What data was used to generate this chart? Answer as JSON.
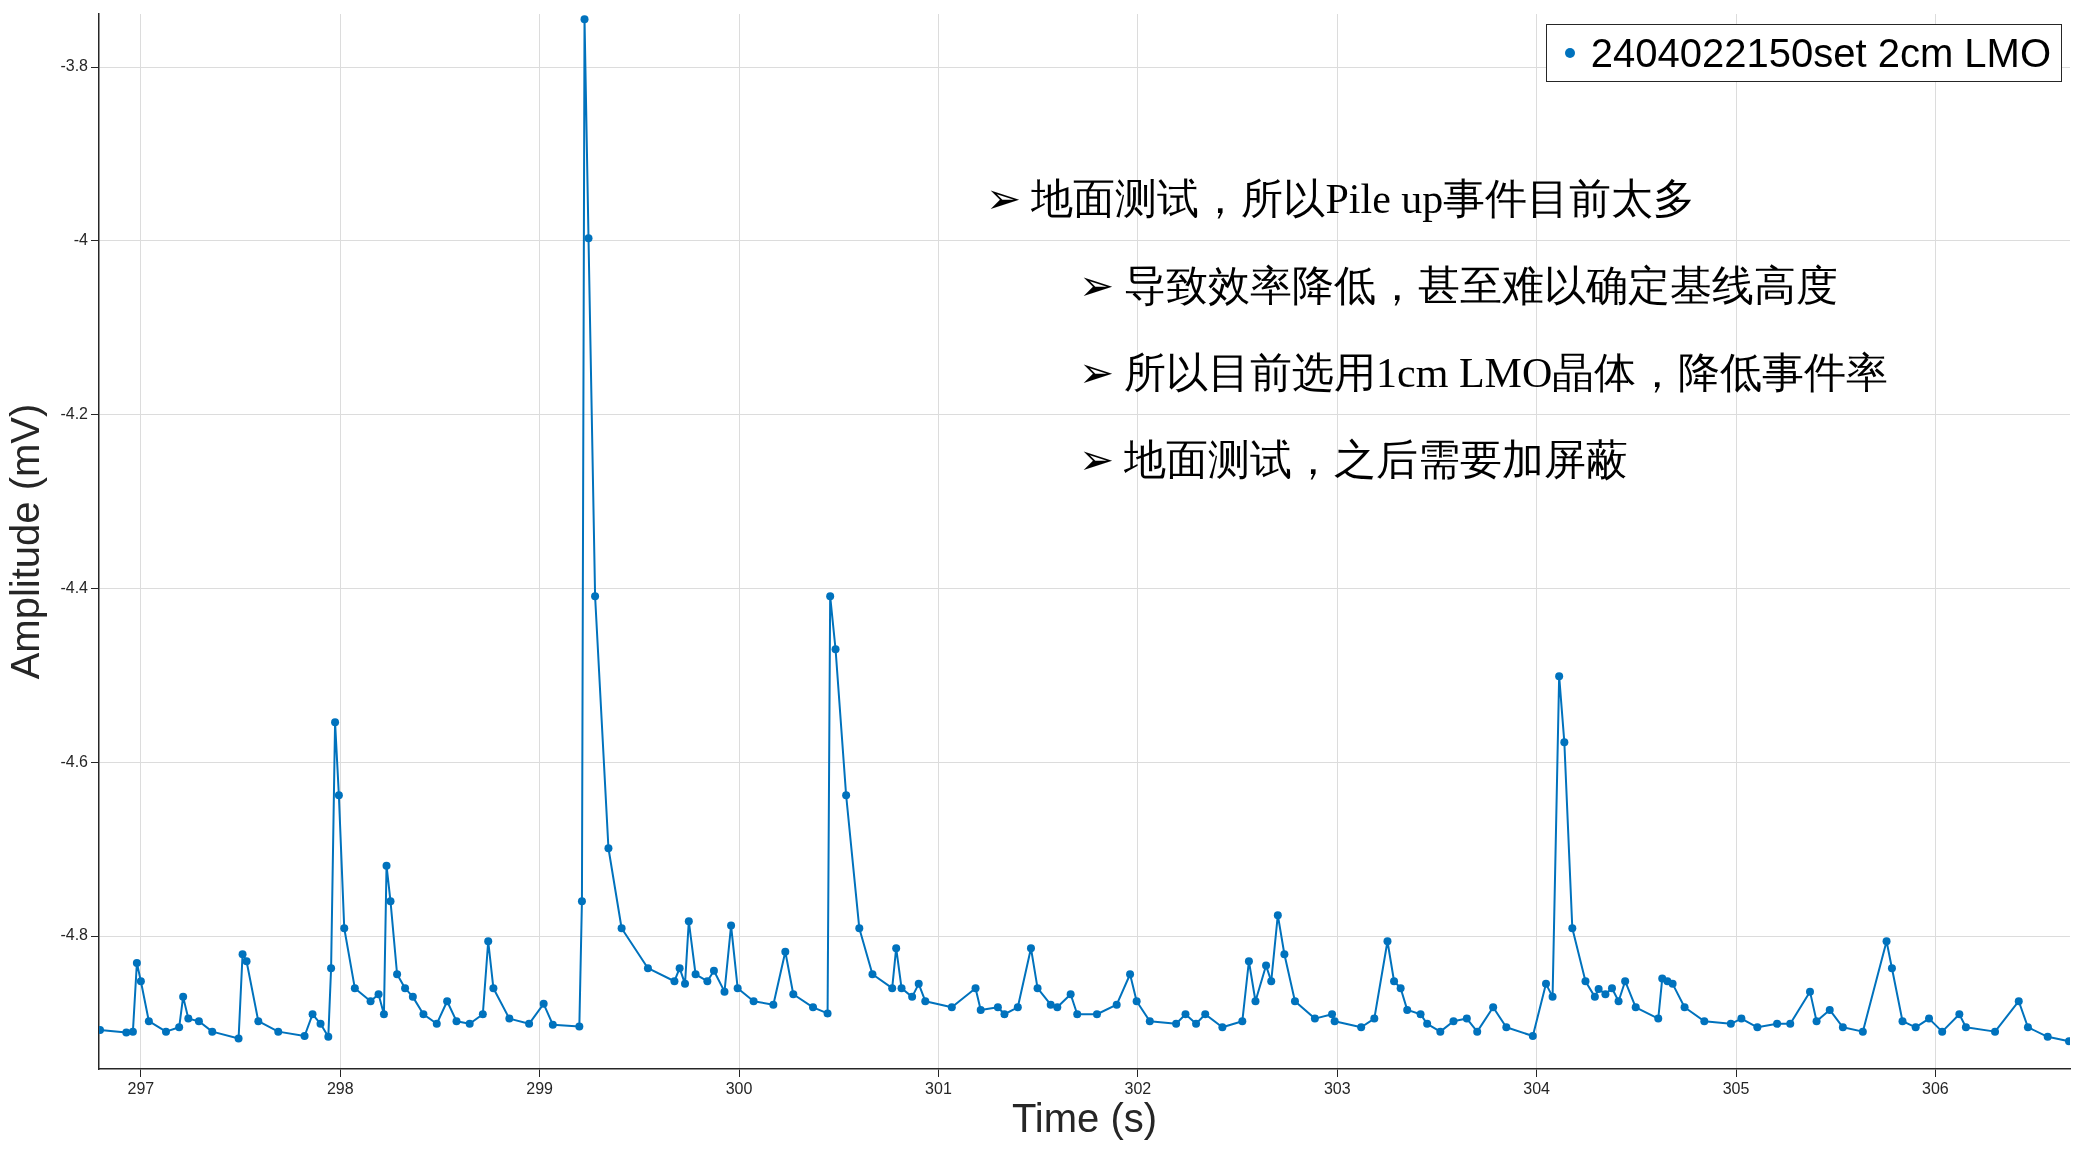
{
  "chart_data": {
    "type": "line",
    "xlabel": "Time (s)",
    "ylabel": "Amplitude (mV)",
    "legend": "top right",
    "marker": "circle",
    "grid": true,
    "xlim": [
      296.79,
      306.675
    ],
    "ylim": [
      -4.953,
      -3.739
    ],
    "xticks": [
      297,
      298,
      299,
      300,
      301,
      302,
      303,
      304,
      305,
      306
    ],
    "yticks": [
      -4.8,
      -4.6,
      -4.4,
      -4.2,
      -4,
      -3.8
    ],
    "annotations": [
      "➢ 地面测试，所以Pile up事件目前太多",
      "➢ 导致效率降低，甚至难以确定基线高度",
      "➢ 所以目前选用1cm LMO晶体，降低事件率",
      "➢ 地面测试，之后需要加屏蔽"
    ],
    "series": [
      {
        "name": "2404022150set 2cm LMO",
        "color": "#0072bd",
        "x": [
          296.795,
          296.927,
          296.96,
          296.98,
          297.0,
          297.04,
          297.126,
          297.192,
          297.212,
          297.238,
          297.291,
          297.358,
          297.49,
          297.51,
          297.53,
          297.589,
          297.689,
          297.821,
          297.861,
          297.901,
          297.94,
          297.954,
          297.974,
          297.993,
          298.02,
          298.073,
          298.152,
          298.192,
          298.219,
          298.232,
          298.252,
          298.285,
          298.325,
          298.364,
          298.417,
          298.484,
          298.536,
          298.583,
          298.649,
          298.715,
          298.742,
          298.768,
          298.848,
          298.947,
          299.02,
          299.066,
          299.199,
          299.212,
          299.225,
          299.245,
          299.278,
          299.345,
          299.411,
          299.543,
          299.676,
          299.702,
          299.729,
          299.748,
          299.782,
          299.841,
          299.874,
          299.927,
          299.96,
          299.993,
          300.073,
          300.172,
          300.232,
          300.272,
          300.371,
          300.444,
          300.457,
          300.484,
          300.537,
          300.603,
          300.669,
          300.768,
          300.788,
          300.815,
          300.868,
          300.901,
          300.934,
          301.067,
          301.186,
          301.212,
          301.298,
          301.331,
          301.398,
          301.464,
          301.497,
          301.563,
          301.596,
          301.663,
          301.696,
          301.795,
          301.894,
          301.961,
          301.994,
          302.06,
          302.192,
          302.239,
          302.292,
          302.338,
          302.424,
          302.524,
          302.557,
          302.59,
          302.643,
          302.669,
          302.702,
          302.735,
          302.788,
          302.888,
          302.974,
          302.987,
          303.12,
          303.186,
          303.252,
          303.285,
          303.318,
          303.351,
          303.418,
          303.451,
          303.517,
          303.583,
          303.65,
          303.702,
          303.782,
          303.848,
          303.981,
          304.047,
          304.08,
          304.113,
          304.139,
          304.179,
          304.245,
          304.292,
          304.311,
          304.345,
          304.378,
          304.411,
          304.444,
          304.497,
          304.61,
          304.63,
          304.656,
          304.682,
          304.742,
          304.841,
          304.974,
          305.027,
          305.107,
          305.206,
          305.272,
          305.371,
          305.404,
          305.47,
          305.536,
          305.636,
          305.755,
          305.782,
          305.835,
          305.901,
          305.968,
          306.034,
          306.12,
          306.153,
          306.299,
          306.418,
          306.464,
          306.563,
          306.67
        ],
        "values": [
          -4.908,
          -4.911,
          -4.91,
          -4.831,
          -4.852,
          -4.898,
          -4.91,
          -4.905,
          -4.87,
          -4.895,
          -4.898,
          -4.91,
          -4.918,
          -4.821,
          -4.829,
          -4.898,
          -4.91,
          -4.915,
          -4.89,
          -4.901,
          -4.916,
          -4.837,
          -4.554,
          -4.638,
          -4.791,
          -4.86,
          -4.875,
          -4.867,
          -4.89,
          -4.719,
          -4.76,
          -4.844,
          -4.86,
          -4.87,
          -4.89,
          -4.901,
          -4.875,
          -4.898,
          -4.901,
          -4.89,
          -4.806,
          -4.86,
          -4.895,
          -4.901,
          -4.878,
          -4.902,
          -4.904,
          -4.76,
          -3.745,
          -3.997,
          -4.409,
          -4.699,
          -4.791,
          -4.837,
          -4.852,
          -4.837,
          -4.855,
          -4.783,
          -4.844,
          -4.852,
          -4.84,
          -4.864,
          -4.788,
          -4.86,
          -4.875,
          -4.879,
          -4.818,
          -4.867,
          -4.882,
          -4.889,
          -4.409,
          -4.47,
          -4.638,
          -4.791,
          -4.844,
          -4.86,
          -4.814,
          -4.86,
          -4.87,
          -4.855,
          -4.875,
          -4.882,
          -4.86,
          -4.885,
          -4.882,
          -4.89,
          -4.882,
          -4.814,
          -4.86,
          -4.879,
          -4.882,
          -4.867,
          -4.89,
          -4.89,
          -4.879,
          -4.844,
          -4.875,
          -4.898,
          -4.901,
          -4.89,
          -4.901,
          -4.89,
          -4.905,
          -4.898,
          -4.829,
          -4.875,
          -4.834,
          -4.852,
          -4.776,
          -4.821,
          -4.875,
          -4.895,
          -4.89,
          -4.898,
          -4.905,
          -4.895,
          -4.806,
          -4.852,
          -4.86,
          -4.885,
          -4.89,
          -4.901,
          -4.91,
          -4.898,
          -4.895,
          -4.91,
          -4.882,
          -4.905,
          -4.915,
          -4.855,
          -4.87,
          -4.501,
          -4.577,
          -4.791,
          -4.852,
          -4.87,
          -4.861,
          -4.867,
          -4.86,
          -4.875,
          -4.852,
          -4.882,
          -4.895,
          -4.849,
          -4.852,
          -4.855,
          -4.882,
          -4.898,
          -4.901,
          -4.895,
          -4.905,
          -4.901,
          -4.901,
          -4.864,
          -4.898,
          -4.885,
          -4.905,
          -4.91,
          -4.806,
          -4.837,
          -4.898,
          -4.905,
          -4.895,
          -4.91,
          -4.89,
          -4.905,
          -4.91,
          -4.875,
          -4.905,
          -4.916,
          -4.921
        ]
      }
    ]
  }
}
